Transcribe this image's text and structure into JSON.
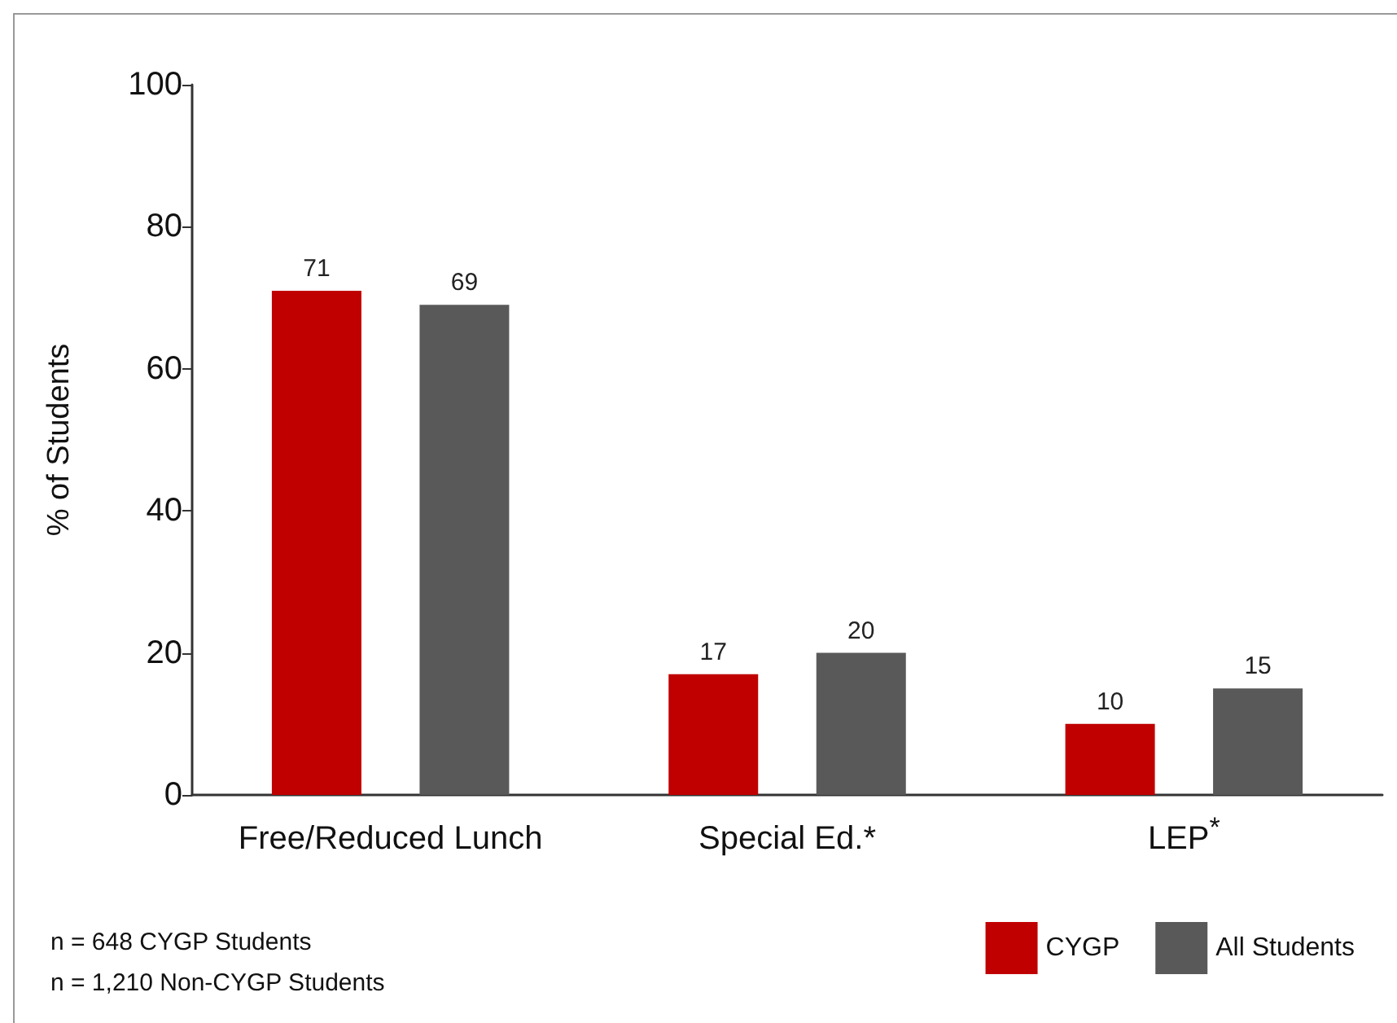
{
  "chart_data": {
    "type": "bar",
    "categories": [
      "Free/Reduced Lunch",
      "Special Ed.*",
      "LEP$^{*}$"
    ],
    "series": [
      {
        "name": "CYGP",
        "color": "#c00000",
        "values": [
          71,
          17,
          10
        ]
      },
      {
        "name": "All Students",
        "color": "#595959",
        "values": [
          69,
          20,
          15
        ]
      }
    ],
    "ylabel": "% of Students",
    "ylim": [
      0,
      100
    ],
    "yticks": [
      0,
      20,
      40,
      60,
      80,
      100
    ],
    "grid": false,
    "legend": "bottom right",
    "data_labels": true,
    "annotations": [
      "n = 648 CYGP Students",
      "n = 1,210 Non-CYGP Students"
    ]
  }
}
